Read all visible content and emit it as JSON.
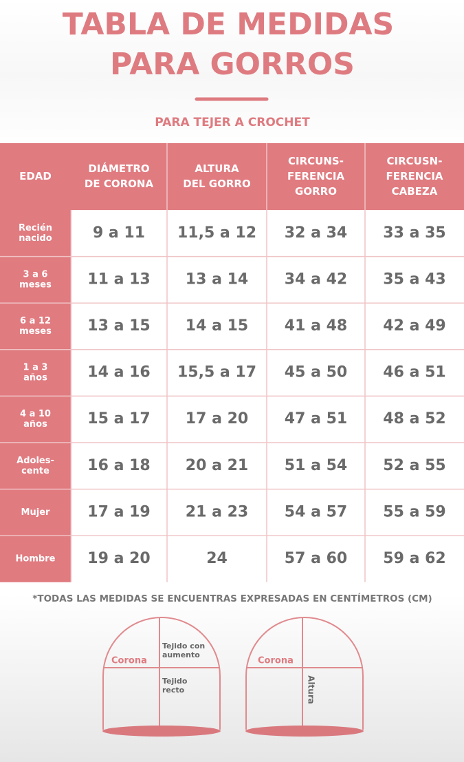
{
  "header": {
    "title": [
      "TABLA DE MEDIDAS",
      "PARA GORROS"
    ],
    "subtitle": "PARA TEJER A CROCHET"
  },
  "table": {
    "header": [
      [
        "EDAD"
      ],
      [
        "DIÁMETRO",
        "DE CORONA"
      ],
      [
        "ALTURA",
        "DEL GORRO"
      ],
      [
        "CIRCUNS-",
        "FERENCIA",
        "GORRO"
      ],
      [
        "CIRCUSN-",
        "FERENCIA",
        "CABEZA"
      ]
    ],
    "rows": [
      [
        [
          "Recién",
          "nacido"
        ],
        "9 a 11",
        "11,5 a 12",
        "32 a 34",
        "33 a 35"
      ],
      [
        [
          "3 a 6",
          "meses"
        ],
        "11 a 13",
        "13 a 14",
        "34 a 42",
        "35 a 43"
      ],
      [
        [
          "6 a 12",
          "meses"
        ],
        "13 a 15",
        "14 a 15",
        "41 a 48",
        "42 a 49"
      ],
      [
        [
          "1 a 3",
          "años"
        ],
        "14 a 16",
        "15,5 a 17",
        "45 a 50",
        "46 a 51"
      ],
      [
        [
          "4 a 10",
          "años"
        ],
        "15 a 17",
        "17 a 20",
        "47 a 51",
        "48 a 52"
      ],
      [
        [
          "Adoles-",
          "cente"
        ],
        "16 a 18",
        "20 a 21",
        "51 a 54",
        "52 a 55"
      ],
      [
        [
          "Mujer"
        ],
        "17 a 19",
        "21 a 23",
        "54 a 57",
        "55 a 59"
      ],
      [
        [
          "Hombre"
        ],
        "19 a 20",
        "24",
        "57 a 60",
        "59 a 62"
      ]
    ]
  },
  "footnote": "*TODAS LAS MEDIDAS SE ENCUENTRAS EXPRESADAS EN CENTÍMETROS (CM)",
  "diagrams": [
    {
      "labels": [
        "Corona",
        [
          "Tejido con",
          "aumento"
        ],
        [
          "Tejido",
          "recto"
        ]
      ]
    },
    {
      "labels": [
        "Corona",
        "Altura"
      ]
    }
  ]
}
